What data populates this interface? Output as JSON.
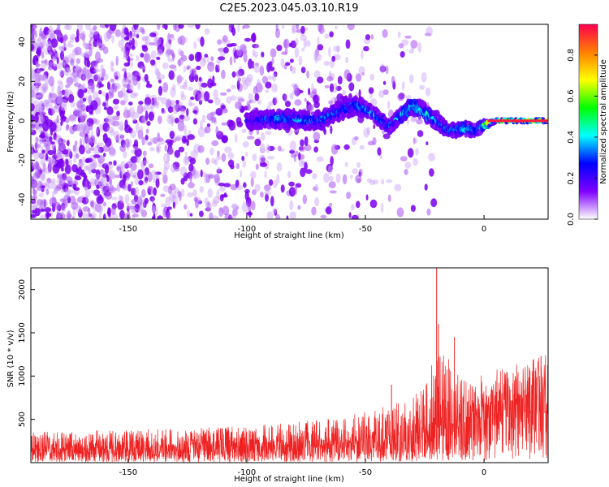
{
  "chart_data": [
    {
      "type": "heatmap",
      "title": "C2E5.2023.045.03.10.R19",
      "xlabel": "Height of straight line (km)",
      "ylabel": "Frequency (Hz)",
      "xlim": [
        -191,
        27
      ],
      "ylim": [
        -50,
        49
      ],
      "x_ticks": [
        -150,
        -100,
        -50,
        0
      ],
      "y_ticks": [
        -40,
        -20,
        0,
        20,
        40
      ],
      "colorbar": {
        "label": "Normalized spectral amplitude",
        "range": [
          0,
          0.95
        ],
        "ticks": [
          0.0,
          0.2,
          0.4,
          0.6,
          0.8
        ],
        "colors": [
          "#ffffff",
          "#7f00ff",
          "#0000ff",
          "#00ffff",
          "#00ff00",
          "#ffff00",
          "#ff7f00",
          "#ff0050"
        ]
      },
      "trace": [
        {
          "x": -100,
          "y": 0,
          "spread": 4,
          "amp": 0.25
        },
        {
          "x": -85,
          "y": 1,
          "spread": 4,
          "amp": 0.45
        },
        {
          "x": -70,
          "y": 0,
          "spread": 4,
          "amp": 0.4
        },
        {
          "x": -55,
          "y": 8,
          "spread": 5,
          "amp": 0.35
        },
        {
          "x": -48,
          "y": 5,
          "spread": 3,
          "amp": 0.45
        },
        {
          "x": -40,
          "y": -3,
          "spread": 3,
          "amp": 0.4
        },
        {
          "x": -30,
          "y": 8,
          "spread": 4,
          "amp": 0.55
        },
        {
          "x": -20,
          "y": 0,
          "spread": 4,
          "amp": 0.45
        },
        {
          "x": -15,
          "y": -5,
          "spread": 3,
          "amp": 0.35
        },
        {
          "x": -8,
          "y": -4,
          "spread": 3,
          "amp": 0.55
        },
        {
          "x": -3,
          "y": -5,
          "spread": 3,
          "amp": 0.45
        },
        {
          "x": 0,
          "y": -2,
          "spread": 2,
          "amp": 0.7
        },
        {
          "x": 5,
          "y": 0,
          "spread": 1,
          "amp": 0.9
        },
        {
          "x": 15,
          "y": 0,
          "spread": 1,
          "amp": 0.95
        },
        {
          "x": 27,
          "y": 0,
          "spread": 1,
          "amp": 0.85
        }
      ]
    },
    {
      "type": "line",
      "title": "",
      "xlabel": "Height of straight line (km)",
      "ylabel": "SNR (10 * v/v)",
      "xlim": [
        -191,
        27
      ],
      "ylim": [
        0,
        2250
      ],
      "x_ticks": [
        -150,
        -100,
        -50,
        0
      ],
      "y_ticks": [
        500,
        1000,
        1500,
        2000
      ],
      "series": [
        {
          "color": "#ee2222",
          "envelope": {
            "x": [
              -191,
              -150,
              -100,
              -60,
              -35,
              -25,
              -20,
              -15,
              -10,
              -5,
              0,
              10,
              20,
              27
            ],
            "base": [
              150,
              160,
              180,
              220,
              280,
              350,
              400,
              420,
              480,
              520,
              600,
              700,
              780,
              820
            ],
            "peak": [
              350,
              380,
              420,
              520,
              700,
              900,
              1300,
              1200,
              1000,
              900,
              1050,
              1100,
              1200,
              1250
            ]
          },
          "spikes": [
            {
              "x": -20,
              "y": 2250
            },
            {
              "x": -19.2,
              "y": 1600
            },
            {
              "x": -12.5,
              "y": 1450
            },
            {
              "x": -39,
              "y": 900
            },
            {
              "x": 24,
              "y": 1230
            }
          ]
        }
      ]
    }
  ]
}
